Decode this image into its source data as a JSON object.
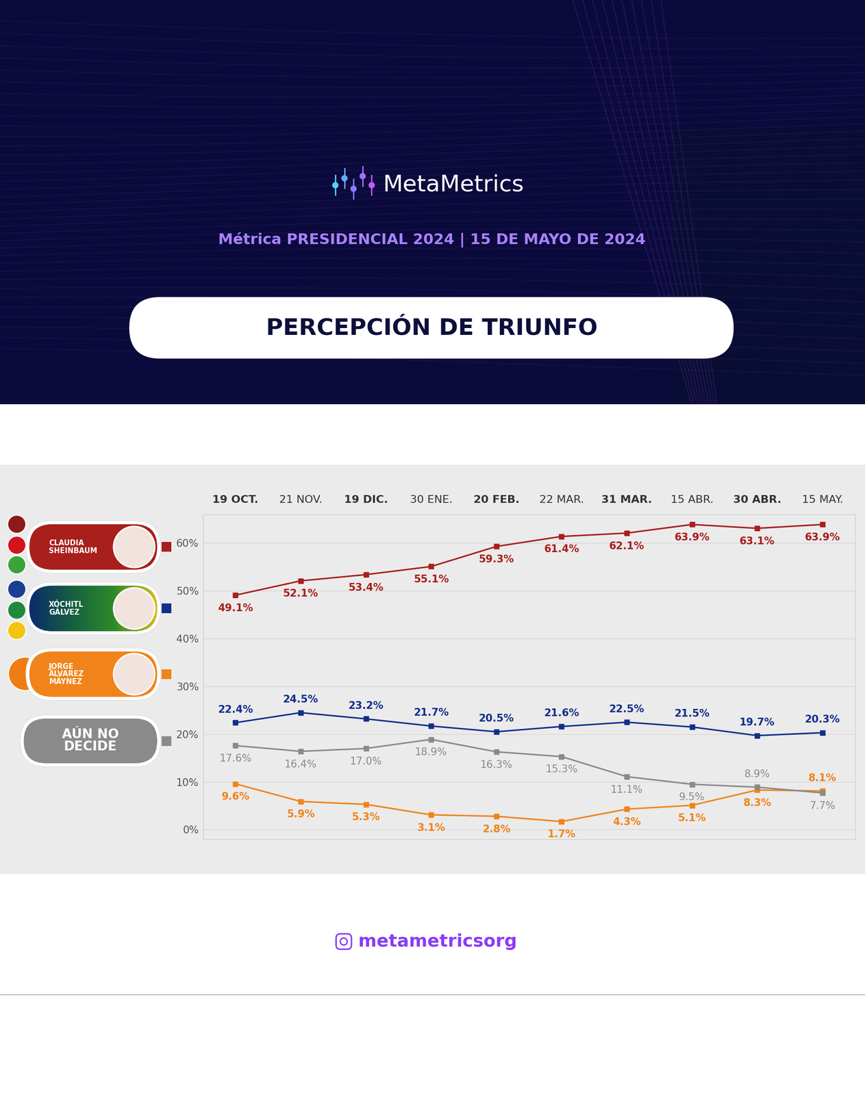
{
  "chart_data": {
    "type": "line",
    "header": "MetaMetrics",
    "subtitle": "Métrica PRESIDENCIAL 2024 | 15 DE MAYO DE 2024",
    "title": "PERCEPCIÓN DE TRIUNFO",
    "footer": "metametricsorg",
    "x": [
      "19 OCT.",
      "21 NOV.",
      "19 DIC.",
      "30 ENE.",
      "20 FEB.",
      "22 MAR.",
      "31 MAR.",
      "15 ABR.",
      "30 ABR.",
      "15 MAY."
    ],
    "series": [
      {
        "name": "CLAUDIA SHEINBAUM",
        "color": "#a81f1c",
        "values": [
          49.1,
          52.1,
          53.4,
          55.1,
          59.3,
          61.4,
          62.1,
          63.9,
          63.1,
          63.9
        ],
        "value_labels": [
          "49.1%",
          "52.1%",
          "53.4%",
          "55.1%",
          "59.3%",
          "61.4%",
          "62.1%",
          "63.9%",
          "63.1%",
          "63.9%"
        ]
      },
      {
        "name": "XÓCHITL GÁLVEZ",
        "color": "#12308a",
        "values": [
          22.4,
          24.5,
          23.2,
          21.7,
          20.5,
          21.6,
          22.5,
          21.5,
          19.7,
          20.3
        ],
        "value_labels": [
          "22.4%",
          "24.5%",
          "23.2%",
          "21.7%",
          "20.5%",
          "21.6%",
          "22.5%",
          "21.5%",
          "19.7%",
          "20.3%"
        ]
      },
      {
        "name": "JORGE ÁLVAREZ MÁYNEZ",
        "color": "#f0841a",
        "values": [
          9.6,
          5.9,
          5.3,
          3.1,
          2.8,
          1.7,
          4.3,
          5.1,
          8.3,
          8.1
        ],
        "value_labels": [
          "9.6%",
          "5.9%",
          "5.3%",
          "3.1%",
          "2.8%",
          "1.7%",
          "4.3%",
          "5.1%",
          "8.3%",
          "8.1%"
        ]
      },
      {
        "name": "AÚN NO DECIDE",
        "color": "#8a8a8a",
        "values": [
          17.6,
          16.4,
          17.0,
          18.9,
          16.3,
          15.3,
          11.1,
          9.5,
          8.9,
          7.7
        ],
        "value_labels": [
          "17.6%",
          "16.4%",
          "17.0%",
          "18.9%",
          "16.3%",
          "15.3%",
          "11.1%",
          "9.5%",
          "8.9%",
          "7.7%"
        ]
      }
    ],
    "ylim": [
      -2,
      66
    ],
    "yticks": [
      {
        "value": 0,
        "label": "0%"
      },
      {
        "value": 10,
        "label": "10%"
      },
      {
        "value": 20,
        "label": "20%"
      },
      {
        "value": 30,
        "label": "30%"
      },
      {
        "value": 40,
        "label": "40%"
      },
      {
        "value": 50,
        "label": "50%"
      },
      {
        "value": 60,
        "label": "60%"
      }
    ],
    "grid": true,
    "legend": "left",
    "marker": "s",
    "line_style": "solid",
    "data_labels": true
  }
}
